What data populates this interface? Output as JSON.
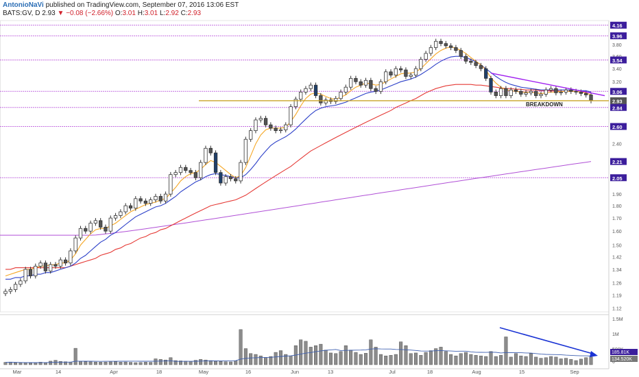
{
  "header": {
    "author": "AntonioNaVi",
    "published": "published on TradingView.com, September 07, 2016 13:06 EST",
    "symbol": "BATS:GV, D",
    "last": "2.93",
    "change": "−0.08 (−2.66%)",
    "open_label": "O:",
    "open": "3.01",
    "high_label": "H:",
    "high": "3.01",
    "low_label": "L:",
    "low": "2.92",
    "close_label": "C:",
    "close": "2.93"
  },
  "colors": {
    "up_candle": "#ffffff",
    "down_candle": "#555555",
    "big_candle": "#1f3f6a",
    "sma_fast": "#f5a623",
    "sma_mid": "#2b3fc8",
    "sma_slow": "#e53935",
    "sma_long": "#b04fd6",
    "level_lines": "#c46ee0",
    "support": "#c9a227",
    "downtrend": "#a020f0",
    "volume": "#8c8c8c",
    "volume_ma": "#3d5fb0",
    "volume_arrow": "#1a33d4",
    "axis_tag": "#3c1e9c"
  },
  "chart_data": [
    {
      "type": "candlestick",
      "title": "",
      "scale": "log",
      "ylim": [
        1.1,
        4.25
      ],
      "y_ticks": [
        "4.16",
        "3.96",
        "3.80",
        "3.60",
        "3.54",
        "3.40",
        "3.20",
        "3.06",
        "2.93",
        "2.84",
        "2.60",
        "2.40",
        "2.21",
        "2.05",
        "1.90",
        "1.80",
        "1.70",
        "1.60",
        "1.50",
        "1.42",
        "1.34",
        "1.26",
        "1.19",
        "1.12"
      ],
      "x_ticks": [
        "Mar",
        "14",
        "Apr",
        "18",
        "May",
        "16",
        "Jun",
        "13",
        "Jul",
        "18",
        "Aug",
        "15",
        "Sep"
      ],
      "horizontal_levels": [
        4.16,
        3.96,
        3.54,
        3.06,
        2.84,
        2.6,
        2.05
      ],
      "support_level": 2.93,
      "annotation": "BREAKDOWN",
      "price_tags": [
        "4.16",
        "3.96",
        "3.54",
        "3.06",
        "2.93",
        "2.84",
        "2.60",
        "2.21",
        "2.05"
      ],
      "closes": [
        1.21,
        1.22,
        1.25,
        1.27,
        1.34,
        1.3,
        1.36,
        1.38,
        1.33,
        1.37,
        1.36,
        1.4,
        1.38,
        1.46,
        1.55,
        1.62,
        1.6,
        1.66,
        1.68,
        1.63,
        1.6,
        1.7,
        1.72,
        1.75,
        1.8,
        1.78,
        1.86,
        1.84,
        1.82,
        1.85,
        1.88,
        1.84,
        1.9,
        2.08,
        2.1,
        2.15,
        2.12,
        2.1,
        2.05,
        2.2,
        2.35,
        2.3,
        2.1,
        2.0,
        2.06,
        2.04,
        2.02,
        2.2,
        2.45,
        2.55,
        2.68,
        2.7,
        2.62,
        2.58,
        2.55,
        2.56,
        2.62,
        2.85,
        2.95,
        3.05,
        3.1,
        3.15,
        3.0,
        2.9,
        2.94,
        2.92,
        2.96,
        3.05,
        3.12,
        3.25,
        3.2,
        3.15,
        3.22,
        3.1,
        3.06,
        3.2,
        3.35,
        3.3,
        3.4,
        3.38,
        3.28,
        3.3,
        3.4,
        3.55,
        3.65,
        3.75,
        3.86,
        3.82,
        3.78,
        3.75,
        3.7,
        3.6,
        3.52,
        3.5,
        3.45,
        3.4,
        3.25,
        3.05,
        3.0,
        3.1,
        3.0,
        3.08,
        3.06,
        3.02,
        3.04,
        3.06,
        3.0,
        3.02,
        3.08,
        3.1,
        3.04,
        3.05,
        3.08,
        3.06,
        3.05,
        3.03,
        3.01,
        2.93
      ],
      "volume_axis": [
        "1.5M",
        "1M",
        "500K",
        "0"
      ],
      "volume_tags": [
        "185.81K",
        "134.520K"
      ],
      "volume_values": [
        80,
        90,
        70,
        60,
        65,
        60,
        75,
        85,
        70,
        120,
        150,
        110,
        100,
        90,
        560,
        110,
        100,
        95,
        90,
        85,
        90,
        95,
        100,
        85,
        90,
        80,
        70,
        75,
        85,
        80,
        200,
        180,
        160,
        240,
        140,
        130,
        120,
        110,
        150,
        180,
        160,
        140,
        120,
        110,
        100,
        95,
        130,
        1200,
        550,
        380,
        350,
        300,
        250,
        280,
        420,
        480,
        350,
        300,
        650,
        850,
        800,
        600,
        650,
        700,
        500,
        400,
        380,
        450,
        650,
        500,
        420,
        350,
        390,
        850,
        600,
        350,
        300,
        320,
        350,
        780,
        650,
        380,
        400,
        320,
        420,
        480,
        550,
        600,
        450,
        350,
        300,
        380,
        420,
        350,
        320,
        300,
        280,
        450,
        280,
        320,
        950,
        260,
        380,
        300,
        280,
        380,
        260,
        220,
        240,
        280,
        260,
        200,
        220,
        180,
        140,
        190,
        240,
        260
      ],
      "sma_fast": [
        1.3,
        1.31,
        1.32,
        1.33,
        1.34,
        1.34,
        1.35,
        1.36,
        1.36,
        1.37,
        1.37,
        1.38,
        1.38,
        1.4,
        1.44,
        1.5,
        1.54,
        1.58,
        1.61,
        1.62,
        1.62,
        1.64,
        1.66,
        1.69,
        1.72,
        1.75,
        1.77,
        1.79,
        1.81,
        1.82,
        1.83,
        1.85,
        1.86,
        1.91,
        1.96,
        2.02,
        2.06,
        2.09,
        2.1,
        2.13,
        2.18,
        2.22,
        2.2,
        2.16,
        2.12,
        2.08,
        2.05,
        2.07,
        2.15,
        2.27,
        2.4,
        2.5,
        2.56,
        2.58,
        2.58,
        2.58,
        2.59,
        2.66,
        2.75,
        2.86,
        2.96,
        3.02,
        3.04,
        3.02,
        2.99,
        2.96,
        2.95,
        2.98,
        3.01,
        3.07,
        3.12,
        3.15,
        3.18,
        3.17,
        3.15,
        3.16,
        3.2,
        3.24,
        3.28,
        3.32,
        3.33,
        3.33,
        3.35,
        3.4,
        3.48,
        3.56,
        3.64,
        3.7,
        3.74,
        3.76,
        3.74,
        3.7,
        3.65,
        3.58,
        3.52,
        3.46,
        3.38,
        3.26,
        3.18,
        3.12,
        3.08,
        3.07,
        3.06,
        3.05,
        3.05,
        3.05,
        3.04,
        3.03,
        3.04,
        3.05,
        3.05,
        3.06,
        3.06,
        3.06,
        3.06,
        3.05,
        3.04,
        3.01
      ],
      "sma_mid": [
        1.28,
        1.28,
        1.29,
        1.29,
        1.3,
        1.3,
        1.31,
        1.31,
        1.32,
        1.32,
        1.33,
        1.34,
        1.35,
        1.36,
        1.38,
        1.41,
        1.43,
        1.46,
        1.49,
        1.52,
        1.54,
        1.57,
        1.59,
        1.62,
        1.65,
        1.68,
        1.71,
        1.73,
        1.75,
        1.77,
        1.79,
        1.8,
        1.82,
        1.85,
        1.88,
        1.92,
        1.95,
        1.98,
        2.01,
        2.03,
        2.06,
        2.08,
        2.09,
        2.08,
        2.07,
        2.06,
        2.05,
        2.05,
        2.08,
        2.13,
        2.19,
        2.26,
        2.32,
        2.38,
        2.42,
        2.45,
        2.48,
        2.52,
        2.57,
        2.63,
        2.69,
        2.75,
        2.8,
        2.83,
        2.85,
        2.86,
        2.87,
        2.89,
        2.91,
        2.94,
        2.97,
        3.0,
        3.03,
        3.05,
        3.06,
        3.08,
        3.11,
        3.14,
        3.17,
        3.2,
        3.22,
        3.24,
        3.27,
        3.31,
        3.36,
        3.41,
        3.47,
        3.52,
        3.56,
        3.59,
        3.6,
        3.6,
        3.58,
        3.55,
        3.51,
        3.46,
        3.4,
        3.34,
        3.28,
        3.23,
        3.19,
        3.16,
        3.14,
        3.12,
        3.11,
        3.1,
        3.09,
        3.08,
        3.08,
        3.08,
        3.08,
        3.08,
        3.08,
        3.08,
        3.08,
        3.07,
        3.07,
        3.05
      ],
      "sma_slow": [
        1.34,
        1.34,
        1.35,
        1.35,
        1.35,
        1.35,
        1.35,
        1.35,
        1.35,
        1.35,
        1.35,
        1.35,
        1.35,
        1.36,
        1.37,
        1.38,
        1.39,
        1.4,
        1.41,
        1.43,
        1.44,
        1.45,
        1.47,
        1.48,
        1.5,
        1.51,
        1.53,
        1.55,
        1.56,
        1.58,
        1.59,
        1.61,
        1.62,
        1.64,
        1.66,
        1.68,
        1.7,
        1.72,
        1.74,
        1.76,
        1.78,
        1.8,
        1.81,
        1.82,
        1.83,
        1.84,
        1.85,
        1.87,
        1.89,
        1.92,
        1.95,
        1.98,
        2.01,
        2.04,
        2.07,
        2.1,
        2.13,
        2.16,
        2.2,
        2.24,
        2.28,
        2.32,
        2.35,
        2.38,
        2.41,
        2.44,
        2.47,
        2.5,
        2.53,
        2.56,
        2.59,
        2.62,
        2.65,
        2.68,
        2.71,
        2.74,
        2.77,
        2.8,
        2.84,
        2.87,
        2.9,
        2.93,
        2.96,
        3.0,
        3.04,
        3.07,
        3.1,
        3.12,
        3.14,
        3.15,
        3.16,
        3.16,
        3.16,
        3.16,
        3.15,
        3.15,
        3.14,
        3.13,
        3.12,
        3.11,
        3.1,
        3.1,
        3.09,
        3.09,
        3.08,
        3.08,
        3.08,
        3.07,
        3.07,
        3.07,
        3.07,
        3.06,
        3.06,
        3.06,
        3.06,
        3.05,
        3.05,
        3.04
      ],
      "sma_long_start": 1.57,
      "sma_long_end": 2.21
    }
  ]
}
